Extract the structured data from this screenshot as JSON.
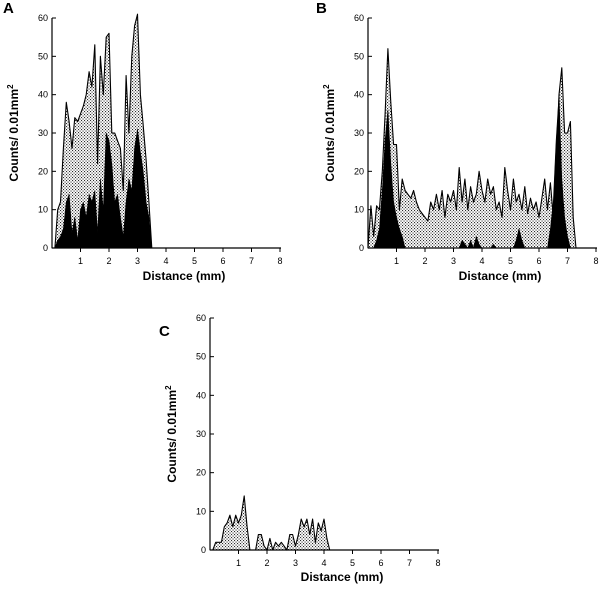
{
  "chart_data": [
    {
      "panel": "A",
      "type": "area",
      "xlabel": "Distance (mm)",
      "ylabel": "Counts/ 0.01mm",
      "ylabel_sup": "2",
      "xlim": [
        0,
        8
      ],
      "ylim": [
        0,
        60
      ],
      "xticks": [
        1,
        2,
        3,
        4,
        5,
        6,
        7,
        8
      ],
      "yticks": [
        0,
        10,
        20,
        30,
        40,
        50,
        60
      ],
      "series": [
        {
          "fill": "stipple",
          "x": [
            0.0,
            0.1,
            0.2,
            0.3,
            0.4,
            0.5,
            0.6,
            0.7,
            0.8,
            0.9,
            1.0,
            1.1,
            1.2,
            1.3,
            1.4,
            1.5,
            1.6,
            1.7,
            1.8,
            1.9,
            2.0,
            2.1,
            2.2,
            2.3,
            2.4,
            2.5,
            2.6,
            2.7,
            2.8,
            2.9,
            3.0,
            3.1,
            3.2,
            3.3,
            3.4,
            3.5,
            3.6
          ],
          "y": [
            0,
            0,
            10,
            12,
            26,
            38,
            33,
            26,
            34,
            33,
            35,
            37,
            40,
            46,
            42,
            53,
            22,
            50,
            40,
            55,
            56,
            30,
            30,
            28,
            26,
            15,
            45,
            30,
            50,
            58,
            61,
            40,
            32,
            23,
            12,
            0,
            0
          ]
        },
        {
          "fill": "solid",
          "x": [
            0.0,
            0.1,
            0.2,
            0.3,
            0.4,
            0.5,
            0.6,
            0.7,
            0.8,
            0.9,
            1.0,
            1.1,
            1.2,
            1.3,
            1.4,
            1.5,
            1.6,
            1.7,
            1.8,
            1.9,
            2.0,
            2.1,
            2.2,
            2.3,
            2.4,
            2.5,
            2.6,
            2.7,
            2.8,
            2.9,
            3.0,
            3.1,
            3.2,
            3.3,
            3.4,
            3.5,
            3.6
          ],
          "y": [
            0,
            0,
            2,
            3,
            5,
            12,
            14,
            4,
            8,
            2,
            10,
            12,
            8,
            14,
            12,
            15,
            4,
            18,
            10,
            30,
            28,
            22,
            12,
            14,
            8,
            3,
            12,
            18,
            15,
            26,
            31,
            25,
            20,
            12,
            8,
            0,
            0
          ]
        }
      ]
    },
    {
      "panel": "B",
      "type": "area",
      "xlabel": "Distance (mm)",
      "ylabel": "Counts/ 0.01mm",
      "ylabel_sup": "2",
      "xlim": [
        0,
        8
      ],
      "ylim": [
        0,
        60
      ],
      "xticks": [
        1,
        2,
        3,
        4,
        5,
        6,
        7,
        8
      ],
      "yticks": [
        0,
        10,
        20,
        30,
        40,
        50,
        60
      ],
      "series": [
        {
          "fill": "stipple",
          "x": [
            0.0,
            0.1,
            0.2,
            0.3,
            0.4,
            0.5,
            0.6,
            0.7,
            0.8,
            0.9,
            1.0,
            1.1,
            1.2,
            1.3,
            1.4,
            1.5,
            1.6,
            1.7,
            1.8,
            1.9,
            2.0,
            2.1,
            2.2,
            2.3,
            2.4,
            2.5,
            2.6,
            2.7,
            2.8,
            2.9,
            3.0,
            3.1,
            3.2,
            3.3,
            3.4,
            3.5,
            3.6,
            3.7,
            3.8,
            3.9,
            4.0,
            4.1,
            4.2,
            4.3,
            4.4,
            4.5,
            4.6,
            4.7,
            4.8,
            4.9,
            5.0,
            5.1,
            5.2,
            5.3,
            5.4,
            5.5,
            5.6,
            5.7,
            5.8,
            5.9,
            6.0,
            6.1,
            6.2,
            6.3,
            6.4,
            6.5,
            6.6,
            6.7,
            6.8,
            6.9,
            7.0,
            7.1,
            7.2,
            7.3
          ],
          "y": [
            0,
            11,
            3,
            11,
            10,
            20,
            35,
            52,
            38,
            27,
            27,
            10,
            18,
            15,
            14,
            13,
            15,
            12,
            10,
            9,
            8,
            7,
            12,
            10,
            14,
            10,
            15,
            8,
            14,
            12,
            15,
            10,
            21,
            12,
            18,
            10,
            16,
            12,
            14,
            20,
            15,
            12,
            18,
            14,
            16,
            10,
            12,
            8,
            21,
            15,
            10,
            18,
            12,
            14,
            10,
            16,
            9,
            13,
            10,
            12,
            8,
            13,
            18,
            10,
            17,
            8,
            20,
            40,
            47,
            30,
            30,
            33,
            8,
            0
          ]
        },
        {
          "fill": "solid",
          "x": [
            0.0,
            0.1,
            0.2,
            0.3,
            0.4,
            0.5,
            0.6,
            0.7,
            0.8,
            0.9,
            1.0,
            1.1,
            1.2,
            1.3,
            1.4,
            1.5,
            1.6,
            1.7,
            1.8,
            1.9,
            2.0,
            2.1,
            2.2,
            2.3,
            2.4,
            2.5,
            2.6,
            2.7,
            2.8,
            2.9,
            3.0,
            3.1,
            3.2,
            3.3,
            3.4,
            3.5,
            3.6,
            3.7,
            3.8,
            3.9,
            4.0,
            4.1,
            4.2,
            4.3,
            4.4,
            4.5,
            4.6,
            4.7,
            4.8,
            4.9,
            5.0,
            5.1,
            5.2,
            5.3,
            5.4,
            5.5,
            5.6,
            5.7,
            5.8,
            5.9,
            6.0,
            6.1,
            6.2,
            6.3,
            6.4,
            6.5,
            6.6,
            6.7,
            6.8,
            6.9,
            7.0,
            7.1,
            7.2,
            7.3
          ],
          "y": [
            0,
            0,
            0,
            2,
            5,
            15,
            28,
            36,
            22,
            12,
            8,
            5,
            3,
            0,
            0,
            0,
            0,
            0,
            0,
            0,
            0,
            0,
            0,
            0,
            0,
            0,
            0,
            0,
            0,
            0,
            0,
            0,
            0,
            2,
            1,
            0,
            2,
            0,
            3,
            1,
            0,
            0,
            0,
            0,
            1,
            0,
            0,
            0,
            0,
            0,
            0,
            0,
            2,
            5,
            2,
            0,
            0,
            0,
            0,
            0,
            0,
            0,
            0,
            0,
            5,
            12,
            28,
            40,
            18,
            8,
            3,
            0,
            0,
            0
          ]
        }
      ]
    },
    {
      "panel": "C",
      "type": "area",
      "xlabel": "Distance (mm)",
      "ylabel": "Counts/ 0.01mm",
      "ylabel_sup": "2",
      "xlim": [
        0,
        8
      ],
      "ylim": [
        0,
        60
      ],
      "xticks": [
        1,
        2,
        3,
        4,
        5,
        6,
        7,
        8
      ],
      "yticks": [
        0,
        10,
        20,
        30,
        40,
        50,
        60
      ],
      "series": [
        {
          "fill": "stipple",
          "x": [
            0.0,
            0.1,
            0.2,
            0.3,
            0.4,
            0.5,
            0.6,
            0.7,
            0.8,
            0.9,
            1.0,
            1.1,
            1.2,
            1.3,
            1.4,
            1.5,
            1.6,
            1.7,
            1.8,
            1.9,
            2.0,
            2.1,
            2.2,
            2.3,
            2.4,
            2.5,
            2.6,
            2.7,
            2.8,
            2.9,
            3.0,
            3.1,
            3.2,
            3.3,
            3.4,
            3.5,
            3.6,
            3.7,
            3.8,
            3.9,
            4.0,
            4.1,
            4.2,
            4.3,
            4.4
          ],
          "y": [
            0,
            0,
            2,
            2,
            2,
            6,
            7,
            9,
            6,
            9,
            7,
            9,
            14,
            6,
            0,
            0,
            0,
            4,
            4,
            1,
            0,
            3,
            0,
            2,
            1,
            2,
            1,
            0,
            4,
            4,
            1,
            4,
            8,
            6,
            8,
            4,
            8,
            2,
            7,
            5,
            8,
            3,
            0,
            0,
            0
          ]
        }
      ]
    }
  ]
}
